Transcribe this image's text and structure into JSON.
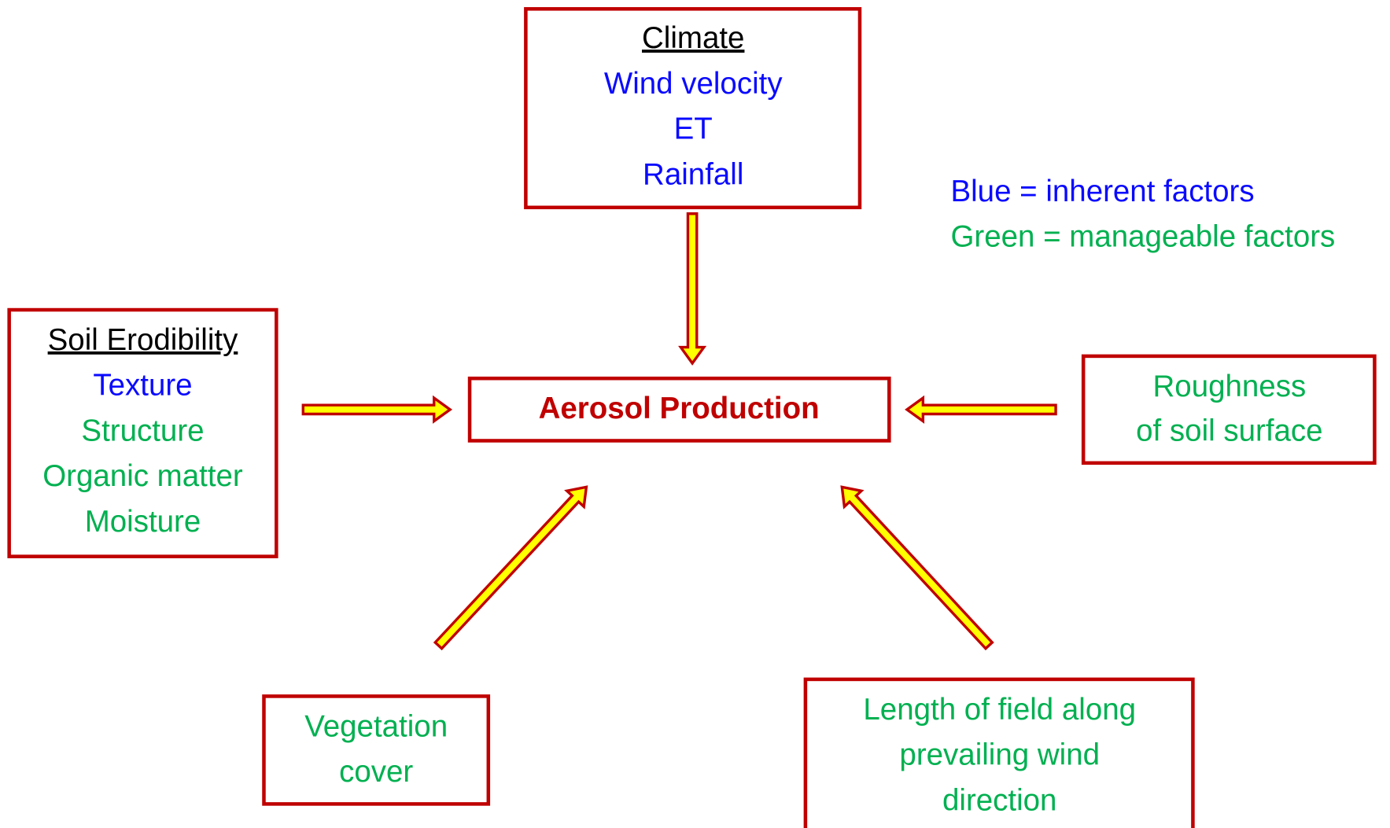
{
  "legend": [
    "Blue = inherent factors",
    "Green = manageable factors"
  ],
  "center": "Aerosol Production",
  "boxes": [
    {
      "title": "Climate",
      "lines": [
        "Wind velocity",
        "ET",
        "Rainfall"
      ]
    },
    {
      "title": "Soil Erodibility",
      "lines": [
        "Texture",
        "Structure",
        "Organic matter",
        "Moisture"
      ]
    },
    {
      "lines": [
        "Roughness",
        "of soil surface"
      ]
    },
    {
      "lines": [
        "Vegetation",
        "cover"
      ]
    },
    {
      "lines": [
        "Length of field along",
        "prevailing wind",
        "direction"
      ]
    }
  ]
}
